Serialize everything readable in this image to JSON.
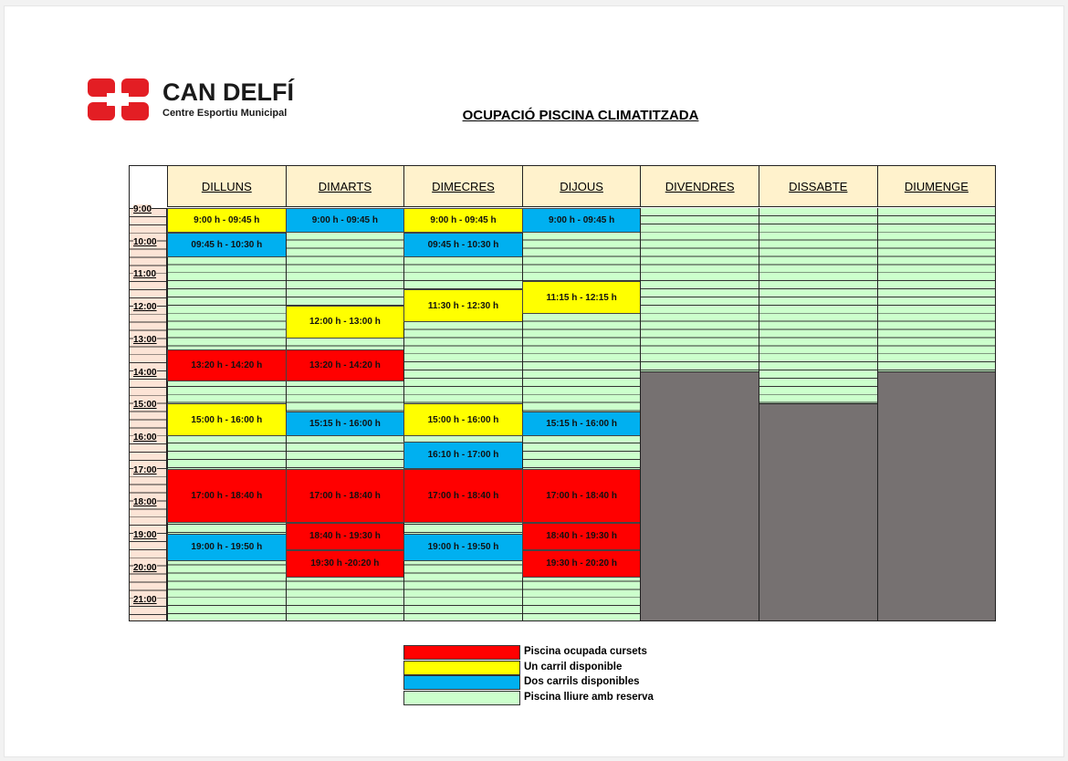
{
  "logo": {
    "name": "CAN DELFÍ",
    "subtitle": "Centre Esportiu Municipal"
  },
  "title": "OCUPACIÓ PISCINA CLIMATITZADA",
  "times": [
    "9:00",
    "10:00",
    "11:00",
    "12:00",
    "13:00",
    "14:00",
    "15:00",
    "16:00",
    "17:00",
    "18:00",
    "19:00",
    "20:00",
    "21:00"
  ],
  "days": [
    {
      "name": "DILLUNS",
      "blocks": [
        {
          "label": "9:00 h - 09:45 h",
          "color": "#ffff00"
        },
        {
          "label": "09:45 h - 10:30 h",
          "color": "#00b0f0"
        },
        {
          "label": "13:20 h - 14:20 h",
          "color": "#ff0000"
        },
        {
          "label": "15:00 h - 16:00 h",
          "color": "#ffff00"
        },
        {
          "label": "17:00 h - 18:40 h",
          "color": "#ff0000"
        },
        {
          "label": "19:00 h - 19:50 h",
          "color": "#00b0f0"
        }
      ]
    },
    {
      "name": "DIMARTS",
      "blocks": [
        {
          "label": "9:00 h - 09:45 h",
          "color": "#00b0f0"
        },
        {
          "label": "12:00 h - 13:00 h",
          "color": "#ffff00"
        },
        {
          "label": "13:20 h - 14:20 h",
          "color": "#ff0000"
        },
        {
          "label": "15:15 h - 16:00 h",
          "color": "#00b0f0"
        },
        {
          "label": "17:00 h - 18:40 h",
          "color": "#ff0000"
        },
        {
          "label": "18:40 h - 19:30 h",
          "color": "#ff0000"
        },
        {
          "label": "19:30 h -20:20 h",
          "color": "#ff0000"
        }
      ]
    },
    {
      "name": "DIMECRES",
      "blocks": [
        {
          "label": "9:00 h - 09:45 h",
          "color": "#ffff00"
        },
        {
          "label": "09:45 h - 10:30 h",
          "color": "#00b0f0"
        },
        {
          "label": "11:30 h - 12:30 h",
          "color": "#ffff00"
        },
        {
          "label": "15:00 h - 16:00 h",
          "color": "#ffff00"
        },
        {
          "label": "16:10 h - 17:00 h",
          "color": "#00b0f0"
        },
        {
          "label": "17:00 h - 18:40 h",
          "color": "#ff0000"
        },
        {
          "label": "19:00 h - 19:50 h",
          "color": "#00b0f0"
        }
      ]
    },
    {
      "name": "DIJOUS",
      "blocks": [
        {
          "label": "9:00 h - 09:45 h",
          "color": "#00b0f0"
        },
        {
          "label": "11:15 h - 12:15 h",
          "color": "#ffff00"
        },
        {
          "label": "15:15 h - 16:00 h",
          "color": "#00b0f0"
        },
        {
          "label": "17:00 h - 18:40 h",
          "color": "#ff0000"
        },
        {
          "label": "18:40 h - 19:30 h",
          "color": "#ff0000"
        },
        {
          "label": "19:30 h - 20:20 h",
          "color": "#ff0000"
        }
      ]
    },
    {
      "name": "DIVENDRES",
      "blocks": []
    },
    {
      "name": "DISSABTE",
      "blocks": []
    },
    {
      "name": "DIUMENGE",
      "blocks": []
    }
  ],
  "legend": [
    {
      "label": "Piscina ocupada cursets",
      "color": "#ff0000"
    },
    {
      "label": "Un carril disponible",
      "color": "#ffff00"
    },
    {
      "label": "Dos carrils disponibles",
      "color": "#00b0f0"
    },
    {
      "label": "Piscina lliure amb reserva",
      "color": "#ccffcc"
    }
  ]
}
